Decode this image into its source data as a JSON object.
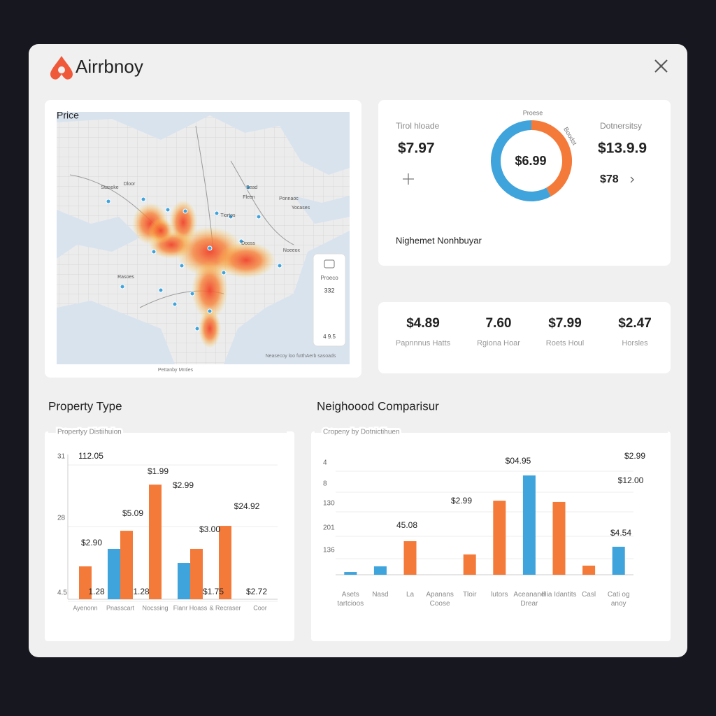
{
  "header": {
    "title": "Airrbnoy"
  },
  "map": {
    "title": "Price",
    "labels": [
      "Stasoke",
      "Dloor",
      "Sead",
      "Fleen",
      "Ponnaoc",
      "Yocases",
      "Dooss",
      "Rasoes",
      "Noeeox",
      "Tiortos"
    ],
    "legend": {
      "label": "Proeco",
      "value": "332",
      "bottom": "4 9.5"
    },
    "attribution": "Neasecoy loo futthAerb sasoads",
    "caption": "Pettanby Mnties"
  },
  "summary": {
    "left_label": "Tirol hloade",
    "left_value": "$7.97",
    "center": "$6.99",
    "top": "Proese",
    "side": "Boodst",
    "right_label": "Dotnersitsy",
    "right_value": "$13.9.9",
    "right_sub": "$78",
    "footer": "Nighemet Nonhbuyar"
  },
  "stats": [
    {
      "value": "$4.89",
      "label": "Papnnnus Hatts"
    },
    {
      "value": "7.60",
      "label": "Rgiona Hoar"
    },
    {
      "value": "$7.99",
      "label": "Roets Houl"
    },
    {
      "value": "$2.47",
      "label": "Horsles"
    }
  ],
  "chart_data": [
    {
      "type": "bar",
      "title": "Property Type",
      "subtitle": "Propertyy Distiihuion",
      "y_labels": [
        "31",
        "28",
        "4.5"
      ],
      "categories": [
        "Ayenonn",
        "Pnasscart",
        "Nocssing",
        "Flanr Hoass",
        "& Recraser",
        "Coor"
      ],
      "series": [
        {
          "color": "#3fa3dc",
          "values": [
            null,
            34.8,
            null,
            25.1,
            null,
            null
          ]
        },
        {
          "color": "#f47a3a",
          "values": [
            22.7,
            47.3,
            79.2,
            34.8,
            50.7,
            null
          ]
        }
      ],
      "ylim": [
        0,
        100
      ],
      "annotations": [
        "112.05",
        "$1.99",
        "$2.99",
        "$5.09",
        "$2.90",
        "$3.00",
        "$24.92",
        "1.28",
        "1.28",
        "$1.75",
        "$2.72"
      ]
    },
    {
      "type": "bar",
      "title": "Neighoood Comparisur",
      "subtitle": "Cropeny by Dotnictihuen",
      "y_labels": [
        "4",
        "8",
        "130",
        "201",
        "136"
      ],
      "categories": [
        "Asets tartcioos",
        "Nasd",
        "La",
        "Apanans Coose",
        "Tloir",
        "lutors",
        "Aceanand Drear",
        "Hia Idantits",
        "Casl",
        "Cati og anoy"
      ],
      "series": [
        {
          "color": "#3fa3dc",
          "values": [
            2.3,
            7,
            null,
            null,
            null,
            null,
            82.6,
            null,
            null,
            23.3
          ]
        },
        {
          "color": "#f47a3a",
          "values": [
            null,
            null,
            27.9,
            null,
            16.9,
            61.6,
            null,
            60.5,
            7.6,
            null
          ]
        }
      ],
      "ylim": [
        0,
        100
      ],
      "annotations": [
        "$04.95",
        "$2.99",
        "45.08",
        "$2.99",
        "$12.00",
        "$4.54"
      ]
    },
    {
      "type": "donut",
      "values": [
        42,
        58
      ],
      "colors": [
        "#f47a3a",
        "#3fa3dc"
      ]
    }
  ]
}
